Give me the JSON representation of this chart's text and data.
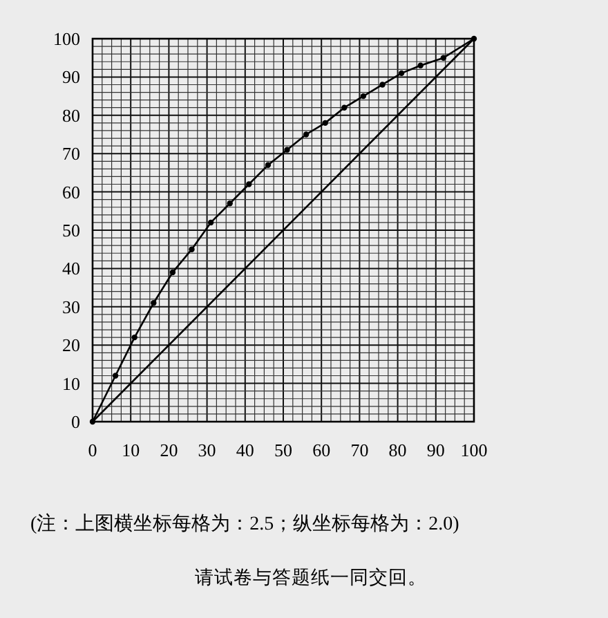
{
  "chart_data": {
    "type": "line",
    "series": [
      {
        "color": "#000000",
        "marker": "circle",
        "x": [
          0,
          6,
          11,
          16,
          21,
          26,
          31,
          36,
          41,
          46,
          51,
          56,
          61,
          66,
          71,
          76,
          81,
          86,
          92,
          100
        ],
        "values": [
          0,
          12,
          22,
          31,
          39,
          45,
          52,
          57,
          62,
          67,
          71,
          75,
          78,
          82,
          85,
          88,
          91,
          93,
          95,
          100
        ]
      },
      {
        "color": "#000000",
        "marker": "none",
        "x": [
          0,
          100
        ],
        "values": [
          0,
          100
        ]
      }
    ],
    "xlim": [
      0,
      100
    ],
    "ylim": [
      0,
      100
    ],
    "xticks": [
      0,
      {
        "value": 2.5,
        "label": null
      },
      {
        "value": 5,
        "label": null
      },
      {
        "value": 7.5,
        "label": null
      },
      10,
      {
        "value": 12.5,
        "label": null
      },
      {
        "value": 15,
        "label": null
      },
      {
        "value": 17.5,
        "label": null
      },
      20,
      {
        "value": 22.5,
        "label": null
      },
      {
        "value": 25,
        "label": null
      },
      {
        "value": 27.5,
        "label": null
      },
      30,
      {
        "value": 32.5,
        "label": null
      },
      {
        "value": 35,
        "label": null
      },
      {
        "value": 37.5,
        "label": null
      },
      40,
      {
        "value": 42.5,
        "label": null
      },
      {
        "value": 45,
        "label": null
      },
      {
        "value": 47.5,
        "label": null
      },
      50,
      {
        "value": 52.5,
        "label": null
      },
      {
        "value": 55,
        "label": null
      },
      {
        "value": 57.5,
        "label": null
      },
      60,
      {
        "value": 62.5,
        "label": null
      },
      {
        "value": 65,
        "label": null
      },
      {
        "value": 67.5,
        "label": null
      },
      70,
      {
        "value": 72.5,
        "label": null
      },
      {
        "value": 75,
        "label": null
      },
      {
        "value": 77.5,
        "label": null
      },
      80,
      {
        "value": 82.5,
        "label": null
      },
      {
        "value": 85,
        "label": null
      },
      {
        "value": 87.5,
        "label": null
      },
      90,
      {
        "value": 92.5,
        "label": null
      },
      {
        "value": 95,
        "label": null
      },
      {
        "value": 97.5,
        "label": null
      },
      100
    ],
    "yticks": [
      0,
      {
        "value": 2,
        "label": null
      },
      {
        "value": 4,
        "label": null
      },
      {
        "value": 6,
        "label": null
      },
      {
        "value": 8,
        "label": null
      },
      10,
      {
        "value": 12,
        "label": null
      },
      {
        "value": 14,
        "label": null
      },
      {
        "value": 16,
        "label": null
      },
      {
        "value": 18,
        "label": null
      },
      20,
      {
        "value": 22,
        "label": null
      },
      {
        "value": 24,
        "label": null
      },
      {
        "value": 26,
        "label": null
      },
      {
        "value": 28,
        "label": null
      },
      30,
      {
        "value": 32,
        "label": null
      },
      {
        "value": 34,
        "label": null
      },
      {
        "value": 36,
        "label": null
      },
      {
        "value": 38,
        "label": null
      },
      40,
      {
        "value": 42,
        "label": null
      },
      {
        "value": 44,
        "label": null
      },
      {
        "value": 46,
        "label": null
      },
      {
        "value": 48,
        "label": null
      },
      50,
      {
        "value": 52,
        "label": null
      },
      {
        "value": 54,
        "label": null
      },
      {
        "value": 56,
        "label": null
      },
      {
        "value": 58,
        "label": null
      },
      60,
      {
        "value": 62,
        "label": null
      },
      {
        "value": 64,
        "label": null
      },
      {
        "value": 66,
        "label": null
      },
      {
        "value": 68,
        "label": null
      },
      70,
      {
        "value": 72,
        "label": null
      },
      {
        "value": 74,
        "label": null
      },
      {
        "value": 76,
        "label": null
      },
      {
        "value": 78,
        "label": null
      },
      80,
      {
        "value": 82,
        "label": null
      },
      {
        "value": 84,
        "label": null
      },
      {
        "value": 86,
        "label": null
      },
      {
        "value": 88,
        "label": null
      },
      90,
      {
        "value": 92,
        "label": null
      },
      {
        "value": 94,
        "label": null
      },
      {
        "value": 96,
        "label": null
      },
      {
        "value": 98,
        "label": null
      },
      100
    ],
    "grid": true,
    "annotations": [
      "(注：上图横坐标每格为：2.5；纵坐标每格为：2.0)",
      "请试卷与答题纸一同交回。"
    ]
  }
}
